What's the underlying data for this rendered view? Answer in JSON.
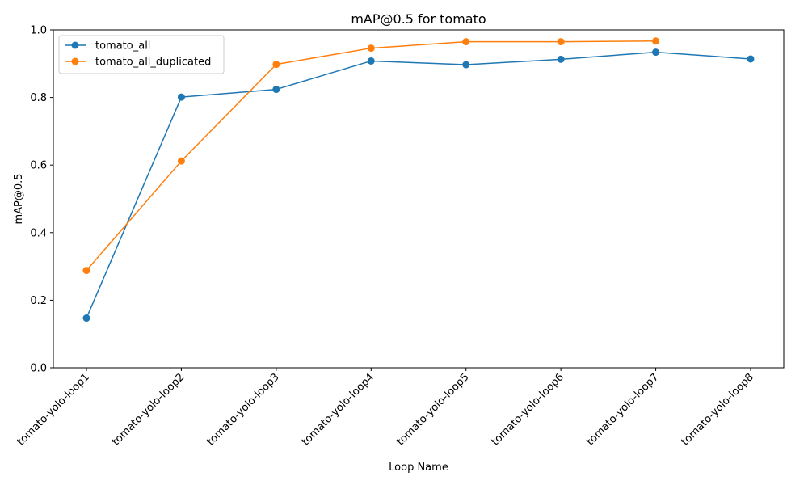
{
  "chart_data": {
    "type": "line",
    "title": "mAP@0.5 for tomato",
    "xlabel": "Loop Name",
    "ylabel": "mAP@0.5",
    "categories": [
      "tomato-yolo-loop1",
      "tomato-yolo-loop2",
      "tomato-yolo-loop3",
      "tomato-yolo-loop4",
      "tomato-yolo-loop5",
      "tomato-yolo-loop6",
      "tomato-yolo-loop7",
      "tomato-yolo-loop8"
    ],
    "ylim": [
      0,
      1.0
    ],
    "yticks": [
      "0.0",
      "0.2",
      "0.4",
      "0.6",
      "0.8",
      "1.0"
    ],
    "grid": false,
    "legend_position": "top-left",
    "series": [
      {
        "name": "tomato_all",
        "color": "#1f77b4",
        "values": [
          0.147,
          0.801,
          0.824,
          0.908,
          0.897,
          0.913,
          0.934,
          0.914
        ]
      },
      {
        "name": "tomato_all_duplicated",
        "color": "#ff7f0e",
        "values": [
          0.288,
          0.612,
          0.898,
          0.946,
          0.965,
          0.965,
          0.967,
          null
        ]
      }
    ]
  }
}
